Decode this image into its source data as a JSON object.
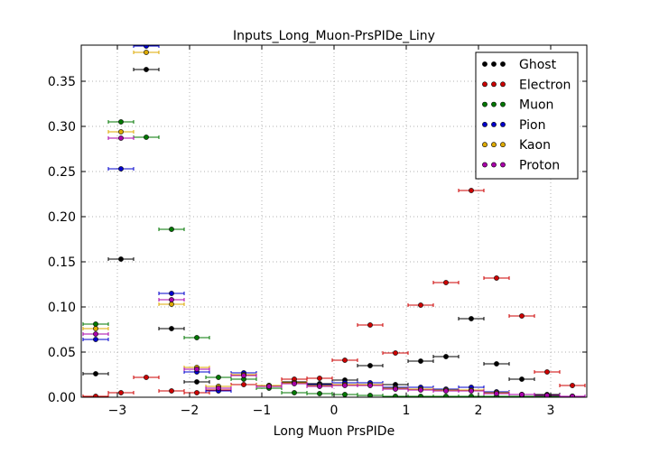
{
  "chart_data": {
    "type": "scatter",
    "title": "Inputs_Long_Muon-PrsPIDe_Liny",
    "xlabel": "Long Muon PrsPIDe",
    "ylabel": "",
    "xlim": [
      -3.5,
      3.5
    ],
    "ylim": [
      0,
      0.39
    ],
    "xticks": [
      -3,
      -2,
      -1,
      0,
      1,
      2,
      3
    ],
    "xtick_labels": [
      "−3",
      "−2",
      "−1",
      "0",
      "1",
      "2",
      "3"
    ],
    "yticks": [
      0.0,
      0.05,
      0.1,
      0.15,
      0.2,
      0.25,
      0.3,
      0.35
    ],
    "ytick_labels": [
      "0.00",
      "0.05",
      "0.10",
      "0.15",
      "0.20",
      "0.25",
      "0.30",
      "0.35"
    ],
    "grid": true,
    "legend_position": "top-right",
    "bin_centers": [
      -3.3,
      -2.95,
      -2.6,
      -2.25,
      -1.9,
      -1.6,
      -1.25,
      -0.9,
      -0.55,
      -0.2,
      0.15,
      0.5,
      0.85,
      1.2,
      1.55,
      1.9,
      2.25,
      2.6,
      2.95,
      3.3
    ],
    "bin_half_width": 0.175,
    "series": [
      {
        "name": "Ghost",
        "color": "#000000",
        "values": [
          0.026,
          0.153,
          0.363,
          0.076,
          0.017,
          0.012,
          0.025,
          0.012,
          0.017,
          0.015,
          0.019,
          0.035,
          0.014,
          0.04,
          0.045,
          0.087,
          0.037,
          0.02,
          0.003,
          0.001
        ]
      },
      {
        "name": "Electron",
        "color": "#cc0000",
        "values": [
          0.001,
          0.005,
          0.022,
          0.007,
          0.005,
          0.008,
          0.014,
          0.013,
          0.02,
          0.021,
          0.041,
          0.08,
          0.049,
          0.102,
          0.127,
          0.229,
          0.132,
          0.09,
          0.028,
          0.013
        ]
      },
      {
        "name": "Muon",
        "color": "#007700",
        "values": [
          0.081,
          0.305,
          0.288,
          0.186,
          0.066,
          0.022,
          0.02,
          0.01,
          0.005,
          0.004,
          0.003,
          0.002,
          0.001,
          0.001,
          0.001,
          0.001,
          0.001,
          0.001,
          0.001,
          0.001
        ]
      },
      {
        "name": "Pion",
        "color": "#0000cc",
        "values": [
          0.064,
          0.253,
          0.389,
          0.115,
          0.028,
          0.007,
          0.027,
          0.013,
          0.016,
          0.014,
          0.016,
          0.016,
          0.011,
          0.011,
          0.009,
          0.011,
          0.006,
          0.003,
          0.002,
          0.001
        ]
      },
      {
        "name": "Kaon",
        "color": "#ddaa00",
        "values": [
          0.076,
          0.294,
          0.382,
          0.103,
          0.033,
          0.012,
          0.025,
          0.013,
          0.016,
          0.013,
          0.014,
          0.014,
          0.01,
          0.009,
          0.008,
          0.008,
          0.005,
          0.003,
          0.002,
          0.001
        ]
      },
      {
        "name": "Proton",
        "color": "#aa00aa",
        "values": [
          0.07,
          0.287,
          0.395,
          0.108,
          0.031,
          0.01,
          0.024,
          0.012,
          0.015,
          0.012,
          0.013,
          0.013,
          0.009,
          0.008,
          0.007,
          0.007,
          0.004,
          0.003,
          0.002,
          0.001
        ]
      }
    ]
  }
}
